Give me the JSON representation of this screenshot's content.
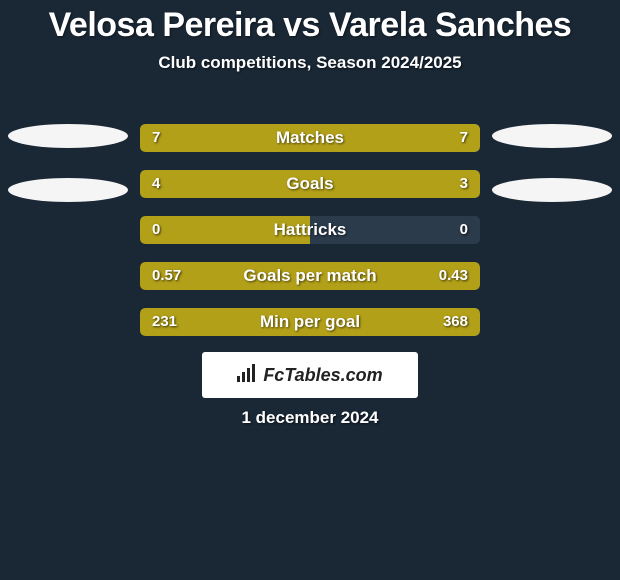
{
  "title": "Velosa Pereira vs Varela Sanches",
  "subtitle": "Club competitions, Season 2024/2025",
  "date": "1 december 2024",
  "logo_text": "FcTables.com",
  "colors": {
    "background": "#1a2836",
    "bar_track": "#2b3b4b",
    "left_fill": "#b3a019",
    "right_fill": "#b3a019",
    "oval": "#f5f5f5",
    "text": "#ffffff"
  },
  "ovals": {
    "left_top_pct": 22,
    "right_top_pct": 22
  },
  "bars": [
    {
      "label": "Matches",
      "left_val": "7",
      "right_val": "7",
      "left_pct": 50,
      "right_pct": 50
    },
    {
      "label": "Goals",
      "left_val": "4",
      "right_val": "3",
      "left_pct": 57,
      "right_pct": 43
    },
    {
      "label": "Hattricks",
      "left_val": "0",
      "right_val": "0",
      "left_pct": 50,
      "right_pct": 0
    },
    {
      "label": "Goals per match",
      "left_val": "0.57",
      "right_val": "0.43",
      "left_pct": 57,
      "right_pct": 43
    },
    {
      "label": "Min per goal",
      "left_val": "231",
      "right_val": "368",
      "left_pct": 38.6,
      "right_pct": 61.4
    }
  ]
}
